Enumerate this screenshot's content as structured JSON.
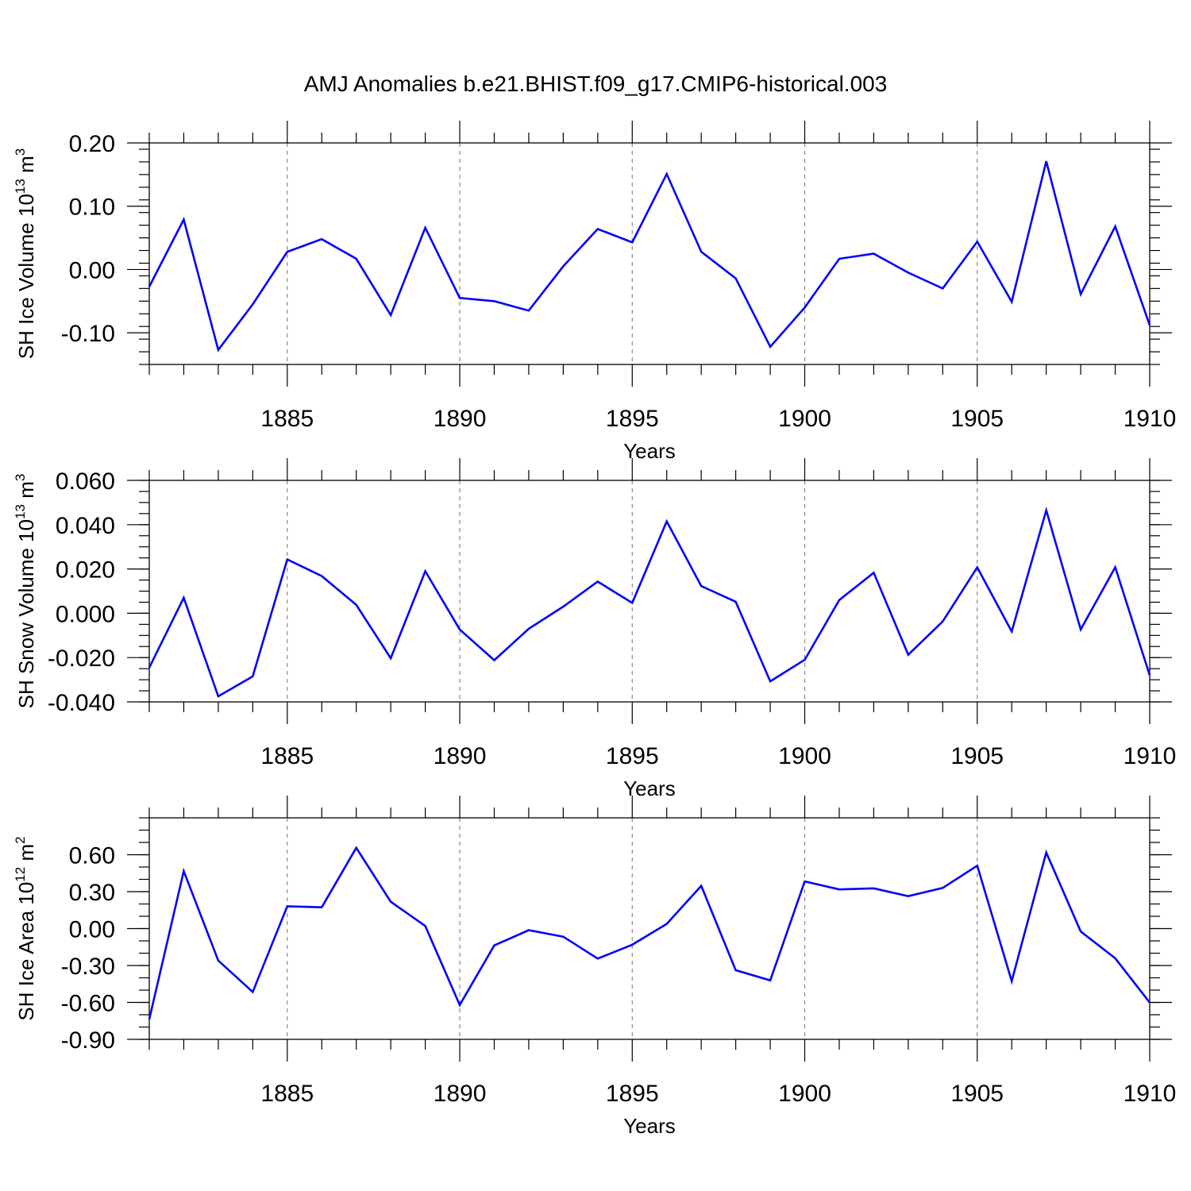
{
  "title": "AMJ Anomalies b.e21.BHIST.f09_g17.CMIP6-historical.003",
  "chart_data": [
    {
      "type": "line",
      "id": "ice-volume",
      "ylabel_main": "SH Ice Volume 10",
      "ylabel_exp": "13",
      "ylabel_unit": " m",
      "ylabel_unit_exp": "3",
      "xlabel": "Years",
      "ylim": [
        -0.15,
        0.2
      ],
      "yticks": [
        0.2,
        0.1,
        0.0,
        -0.1
      ],
      "ytick_labels": [
        "0.20",
        "0.10",
        "0.00",
        "-0.10"
      ],
      "yminor_step": 0.02,
      "xlim": [
        1881,
        1910
      ],
      "xticks": [
        1885,
        1890,
        1895,
        1900,
        1905,
        1910
      ],
      "xtick_labels": [
        "1885",
        "1890",
        "1895",
        "1900",
        "1905",
        "1910"
      ],
      "grid_x": [
        1885,
        1890,
        1895,
        1900,
        1905
      ],
      "series": [
        {
          "name": "SH Ice Volume",
          "color": "#0000ff",
          "x": [
            1881,
            1882,
            1883,
            1884,
            1885,
            1886,
            1887,
            1888,
            1889,
            1890,
            1891,
            1892,
            1893,
            1894,
            1895,
            1896,
            1897,
            1898,
            1899,
            1900,
            1901,
            1902,
            1903,
            1904,
            1905,
            1906,
            1907,
            1908,
            1909,
            1910
          ],
          "values": [
            -0.027,
            0.079,
            -0.127,
            -0.055,
            0.028,
            0.048,
            0.017,
            -0.072,
            0.066,
            -0.045,
            -0.05,
            -0.065,
            0.005,
            0.064,
            0.043,
            0.151,
            0.028,
            -0.014,
            -0.122,
            -0.06,
            0.017,
            0.025,
            -0.005,
            -0.03,
            0.044,
            -0.051,
            0.171,
            -0.039,
            0.068,
            -0.088
          ]
        }
      ]
    },
    {
      "type": "line",
      "id": "snow-volume",
      "ylabel_main": "SH Snow Volume 10",
      "ylabel_exp": "13",
      "ylabel_unit": " m",
      "ylabel_unit_exp": "3",
      "xlabel": "Years",
      "ylim": [
        -0.04,
        0.06
      ],
      "yticks": [
        0.06,
        0.04,
        0.02,
        0.0,
        -0.02,
        -0.04
      ],
      "ytick_labels": [
        "0.060",
        "0.040",
        "0.020",
        "0.000",
        "-0.020",
        "-0.040"
      ],
      "yminor_step": 0.005,
      "xlim": [
        1881,
        1910
      ],
      "xticks": [
        1885,
        1890,
        1895,
        1900,
        1905,
        1910
      ],
      "xtick_labels": [
        "1885",
        "1890",
        "1895",
        "1900",
        "1905",
        "1910"
      ],
      "grid_x": [
        1885,
        1890,
        1895,
        1900,
        1905
      ],
      "series": [
        {
          "name": "SH Snow Volume",
          "color": "#0000ff",
          "x": [
            1881,
            1882,
            1883,
            1884,
            1885,
            1886,
            1887,
            1888,
            1889,
            1890,
            1891,
            1892,
            1893,
            1894,
            1895,
            1896,
            1897,
            1898,
            1899,
            1900,
            1901,
            1902,
            1903,
            1904,
            1905,
            1906,
            1907,
            1908,
            1909,
            1910
          ],
          "values": [
            -0.0245,
            0.007,
            -0.0375,
            -0.0285,
            0.0243,
            0.0168,
            0.0038,
            -0.0203,
            0.019,
            -0.0073,
            -0.0212,
            -0.007,
            0.003,
            0.0143,
            0.0047,
            0.0415,
            0.0123,
            0.0052,
            -0.0307,
            -0.021,
            0.006,
            0.0183,
            -0.0187,
            -0.0037,
            0.0207,
            -0.0082,
            0.0465,
            -0.0073,
            0.0208,
            -0.028
          ]
        }
      ]
    },
    {
      "type": "line",
      "id": "ice-area",
      "ylabel_main": "SH Ice Area 10",
      "ylabel_exp": "12",
      "ylabel_unit": " m",
      "ylabel_unit_exp": "2",
      "xlabel": "Years",
      "ylim": [
        -0.9,
        0.9
      ],
      "yticks": [
        0.6,
        0.3,
        0.0,
        -0.3,
        -0.6,
        -0.9
      ],
      "ytick_labels": [
        "0.60",
        "0.30",
        "0.00",
        "-0.30",
        "-0.60",
        "-0.90"
      ],
      "yminor_step": 0.1,
      "xlim": [
        1881,
        1910
      ],
      "xticks": [
        1885,
        1890,
        1895,
        1900,
        1905,
        1910
      ],
      "xtick_labels": [
        "1885",
        "1890",
        "1895",
        "1900",
        "1905",
        "1910"
      ],
      "grid_x": [
        1885,
        1890,
        1895,
        1900,
        1905
      ],
      "series": [
        {
          "name": "SH Ice Area",
          "color": "#0000ff",
          "x": [
            1881,
            1882,
            1883,
            1884,
            1885,
            1886,
            1887,
            1888,
            1889,
            1890,
            1891,
            1892,
            1893,
            1894,
            1895,
            1896,
            1897,
            1898,
            1899,
            1900,
            1901,
            1902,
            1903,
            1904,
            1905,
            1906,
            1907,
            1908,
            1909,
            1910
          ],
          "values": [
            -0.737,
            0.467,
            -0.26,
            -0.515,
            0.181,
            0.173,
            0.656,
            0.218,
            0.021,
            -0.621,
            -0.137,
            -0.013,
            -0.066,
            -0.244,
            -0.131,
            0.038,
            0.347,
            -0.338,
            -0.421,
            0.383,
            0.318,
            0.327,
            0.263,
            0.33,
            0.511,
            -0.427,
            0.618,
            -0.024,
            -0.241,
            -0.601
          ]
        }
      ]
    }
  ]
}
